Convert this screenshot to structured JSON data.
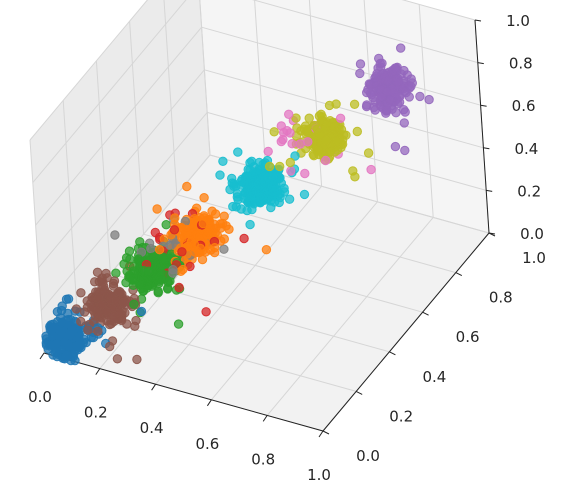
{
  "chart_data": {
    "type": "scatter",
    "projection": "3d",
    "title": "",
    "xlabel": "",
    "ylabel": "",
    "zlabel": "",
    "xlim": [
      0.0,
      1.0
    ],
    "ylim": [
      0.0,
      1.0
    ],
    "zlim": [
      0.0,
      1.0
    ],
    "grid": true,
    "x_ticks": [
      "0.0",
      "0.2",
      "0.4",
      "0.6",
      "0.8",
      "1.0"
    ],
    "y_ticks": [
      "0.0",
      "0.2",
      "0.4",
      "0.6",
      "0.8",
      "1.0"
    ],
    "z_ticks": [
      "0.0",
      "0.2",
      "0.4",
      "0.6",
      "0.8",
      "1.0"
    ],
    "clusters": [
      {
        "color": "#1f77b4",
        "center": [
          0.05,
          0.05,
          0.05
        ],
        "count": 220
      },
      {
        "color": "#8c564b",
        "center": [
          0.15,
          0.15,
          0.15
        ],
        "count": 200
      },
      {
        "color": "#2ca02c",
        "center": [
          0.25,
          0.25,
          0.25
        ],
        "count": 220
      },
      {
        "color": "#7f7f7f",
        "center": [
          0.3,
          0.3,
          0.32
        ],
        "count": 25
      },
      {
        "color": "#d62728",
        "center": [
          0.32,
          0.32,
          0.35
        ],
        "count": 25
      },
      {
        "color": "#ff7f0e",
        "center": [
          0.35,
          0.35,
          0.35
        ],
        "count": 200
      },
      {
        "color": "#17becf",
        "center": [
          0.5,
          0.5,
          0.5
        ],
        "count": 200
      },
      {
        "color": "#e377c2",
        "center": [
          0.6,
          0.6,
          0.62
        ],
        "count": 25
      },
      {
        "color": "#bcbd22",
        "center": [
          0.65,
          0.65,
          0.65
        ],
        "count": 200
      },
      {
        "color": "#9467bd",
        "center": [
          0.8,
          0.8,
          0.8
        ],
        "count": 200
      }
    ]
  }
}
